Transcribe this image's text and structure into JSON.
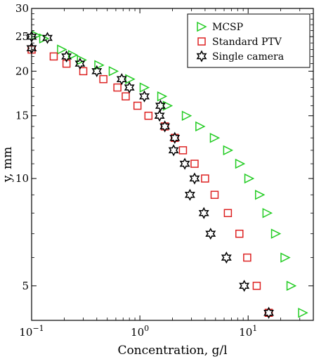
{
  "chart_data": {
    "type": "scatter",
    "xscale": "log",
    "yscale": "log",
    "xlim": [
      0.1,
      40
    ],
    "ylim": [
      4,
      30
    ],
    "xlabel": "Concentration, g/l",
    "ylabel": "y, mm",
    "grid": false,
    "legend": "top-right",
    "x_ticks": [
      {
        "value": 0.1,
        "base": "10",
        "exp": "−1"
      },
      {
        "value": 1,
        "base": "10",
        "exp": "0"
      },
      {
        "value": 10,
        "base": "10",
        "exp": "1"
      }
    ],
    "y_ticks": [
      {
        "value": 5,
        "label": "5"
      },
      {
        "value": 10,
        "label": "10"
      },
      {
        "value": 15,
        "label": "15"
      },
      {
        "value": 20,
        "label": "20"
      },
      {
        "value": 25,
        "label": "25"
      },
      {
        "value": 30,
        "label": "30"
      }
    ],
    "series": [
      {
        "name": "MCSP",
        "marker": "triangle-right",
        "color": "#22cc22",
        "points": [
          [
            0.11,
            25.2
          ],
          [
            0.13,
            24.7
          ],
          [
            0.19,
            23.0
          ],
          [
            0.24,
            22.2
          ],
          [
            0.29,
            21.5
          ],
          [
            0.42,
            20.8
          ],
          [
            0.57,
            20.0
          ],
          [
            0.81,
            19.0
          ],
          [
            1.1,
            18.0
          ],
          [
            1.6,
            17.0
          ],
          [
            1.8,
            16.0
          ],
          [
            2.7,
            15.0
          ],
          [
            3.6,
            14.0
          ],
          [
            4.9,
            13.0
          ],
          [
            6.5,
            12.0
          ],
          [
            8.4,
            11.0
          ],
          [
            10.2,
            10.0
          ],
          [
            12.8,
            9.0
          ],
          [
            15.0,
            8.0
          ],
          [
            18.0,
            7.0
          ],
          [
            22.0,
            6.0
          ],
          [
            25.0,
            5.0
          ],
          [
            32.0,
            4.2
          ]
        ]
      },
      {
        "name": "Standard PTV",
        "marker": "square",
        "color": "#dd2222",
        "points": [
          [
            0.1,
            23.0
          ],
          [
            0.16,
            22.0
          ],
          [
            0.21,
            21.0
          ],
          [
            0.3,
            20.0
          ],
          [
            0.46,
            19.0
          ],
          [
            0.62,
            18.0
          ],
          [
            0.74,
            17.0
          ],
          [
            0.95,
            16.0
          ],
          [
            1.2,
            15.0
          ],
          [
            1.7,
            14.0
          ],
          [
            2.1,
            13.0
          ],
          [
            2.5,
            12.0
          ],
          [
            3.2,
            11.0
          ],
          [
            4.0,
            10.0
          ],
          [
            4.9,
            9.0
          ],
          [
            6.5,
            8.0
          ],
          [
            8.3,
            7.0
          ],
          [
            9.8,
            6.0
          ],
          [
            12.0,
            5.0
          ],
          [
            15.5,
            4.2
          ]
        ]
      },
      {
        "name": "Single camera",
        "marker": "hexagram",
        "color": "#000000",
        "points": [
          [
            0.1,
            23.2
          ],
          [
            0.1,
            25.0
          ],
          [
            0.14,
            24.8
          ],
          [
            0.21,
            22.0
          ],
          [
            0.28,
            21.0
          ],
          [
            0.4,
            20.0
          ],
          [
            0.68,
            19.0
          ],
          [
            0.8,
            18.0
          ],
          [
            1.1,
            17.0
          ],
          [
            1.55,
            16.0
          ],
          [
            1.52,
            15.0
          ],
          [
            1.7,
            14.0
          ],
          [
            2.1,
            13.0
          ],
          [
            2.05,
            12.0
          ],
          [
            2.6,
            11.0
          ],
          [
            3.2,
            10.0
          ],
          [
            2.9,
            9.0
          ],
          [
            3.9,
            8.0
          ],
          [
            4.5,
            7.0
          ],
          [
            6.3,
            6.0
          ],
          [
            9.2,
            5.0
          ],
          [
            15.5,
            4.2
          ]
        ]
      }
    ]
  }
}
